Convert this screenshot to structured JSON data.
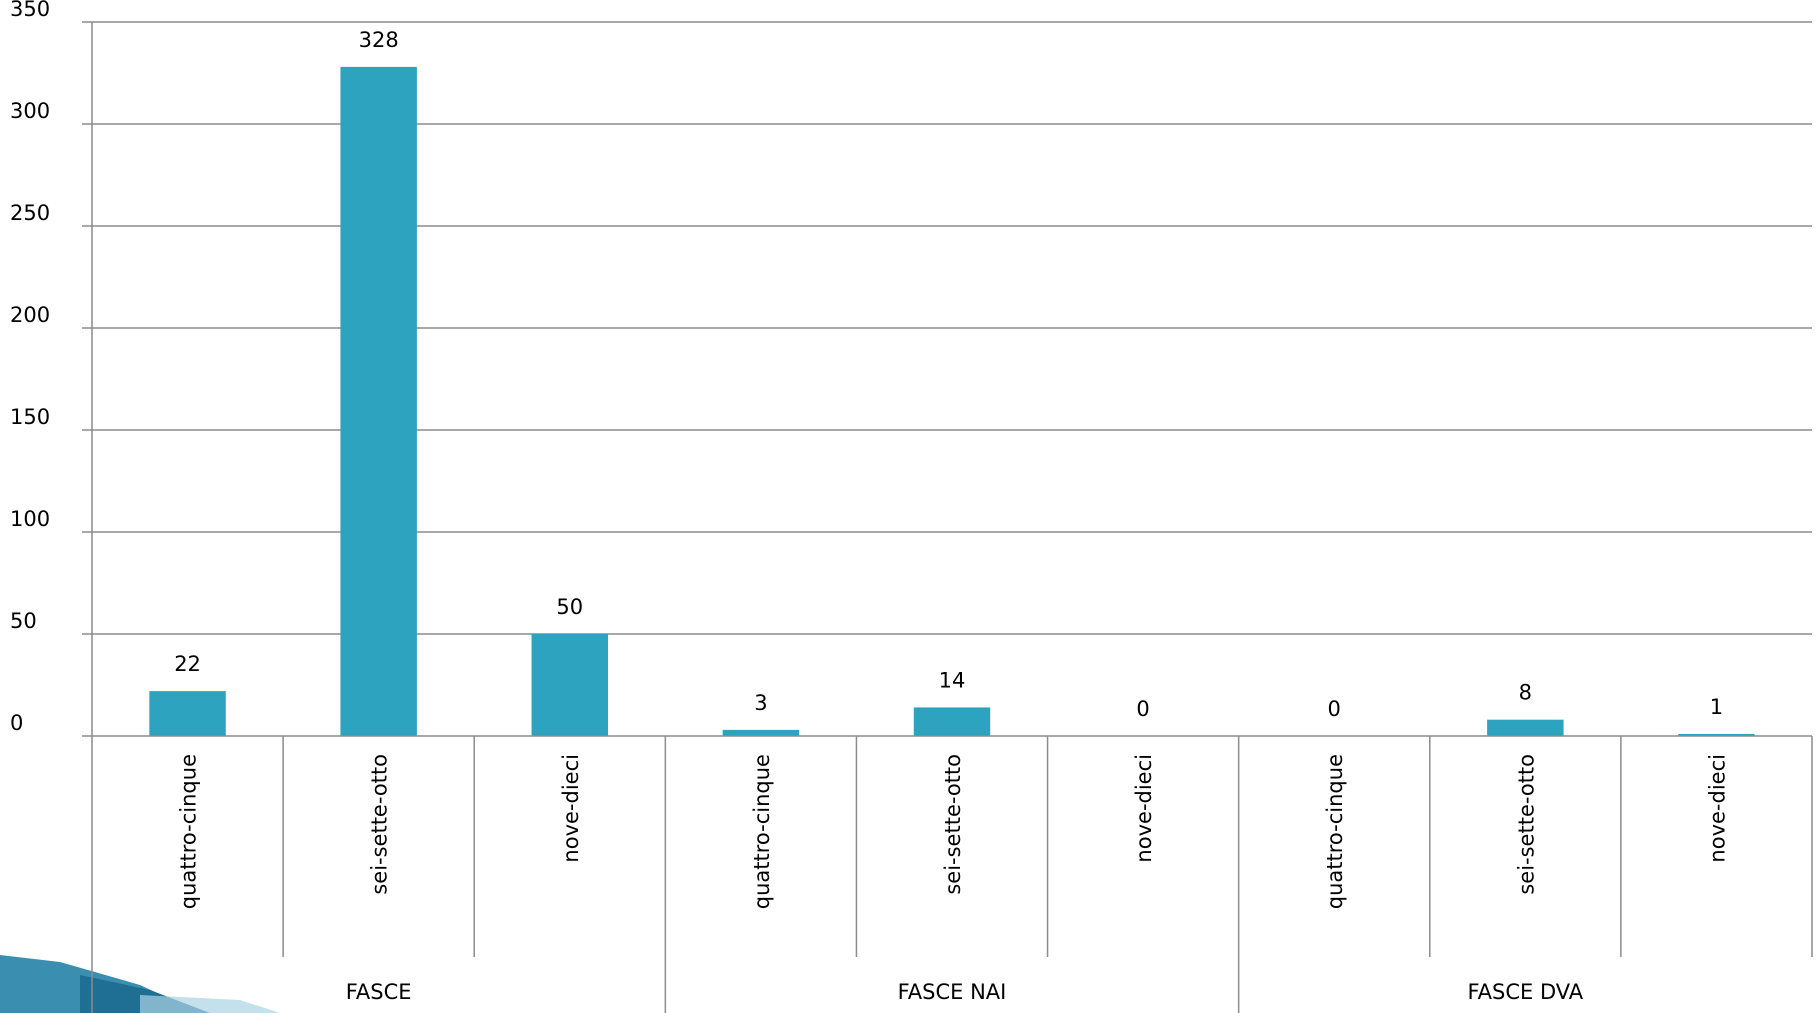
{
  "chart_data": {
    "type": "bar",
    "title": "",
    "xlabel": "",
    "ylabel": "",
    "ylim": [
      0,
      350
    ],
    "yticks": [
      0,
      50,
      100,
      150,
      200,
      250,
      300,
      350
    ],
    "grid": true,
    "legend": "none",
    "bar_color": "#2ea3bf",
    "groups": [
      {
        "label": "FASCE",
        "categories": [
          "quattro-cinque",
          "sei-sette-otto",
          "nove-dieci"
        ],
        "values": [
          22,
          328,
          50
        ]
      },
      {
        "label": "FASCE NAI",
        "categories": [
          "quattro-cinque",
          "sei-sette-otto",
          "nove-dieci"
        ],
        "values": [
          3,
          14,
          0
        ]
      },
      {
        "label": "FASCE DVA",
        "categories": [
          "quattro-cinque",
          "sei-sette-otto",
          "nove-dieci"
        ],
        "values": [
          0,
          8,
          1
        ]
      }
    ]
  }
}
